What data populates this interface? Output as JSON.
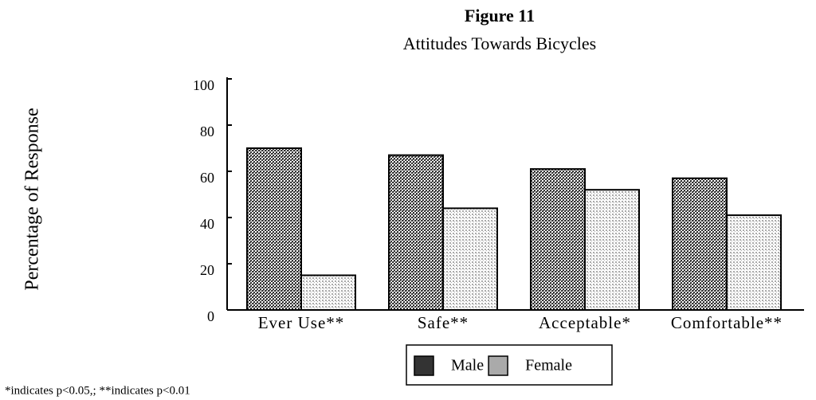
{
  "chart_data": {
    "type": "bar",
    "title": "Figure 11",
    "subtitle": "Attitudes Towards Bicycles",
    "y_label": "Percentage of Response",
    "categories": [
      "Ever Use**",
      "Safe**",
      "Acceptable*",
      "Comfortable**"
    ],
    "series": [
      {
        "name": "Male",
        "color": "#333333",
        "values": [
          70,
          67,
          61,
          57
        ]
      },
      {
        "name": "Female",
        "color": "#aaaaaa",
        "values": [
          15,
          44,
          52,
          41
        ]
      }
    ],
    "ylim": [
      0,
      100
    ],
    "yticks": [
      0,
      20,
      40,
      60,
      80,
      100
    ],
    "legend": "bottom",
    "note": "*indicates p<0.05,; **indicates p<0.01"
  }
}
